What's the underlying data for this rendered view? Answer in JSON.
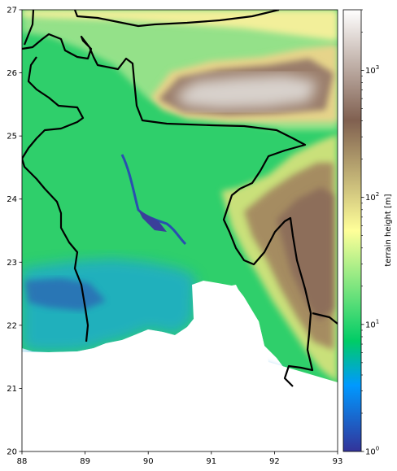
{
  "chart_data": {
    "type": "heatmap",
    "title": "",
    "xlabel": "",
    "ylabel": "",
    "xlim": [
      88,
      93
    ],
    "ylim": [
      20,
      27
    ],
    "x_ticks": [
      "88",
      "89",
      "90",
      "91",
      "92",
      "93"
    ],
    "y_ticks": [
      "20",
      "21",
      "22",
      "23",
      "24",
      "25",
      "26",
      "27"
    ],
    "colorbar": {
      "label": "terrain height [m]",
      "scale": "log",
      "range": [
        1,
        3000
      ],
      "colormap": "terrain",
      "ticks": [
        {
          "value": 1,
          "base": "10",
          "exp": "0"
        },
        {
          "value": 10,
          "base": "10",
          "exp": "1"
        },
        {
          "value": 100,
          "base": "10",
          "exp": "2"
        },
        {
          "value": 1000,
          "base": "10",
          "exp": "3"
        }
      ]
    },
    "features": {
      "plains_typical_m": 15,
      "hills_typical_m": 300,
      "plateau_typical_m": 1500,
      "boundary_color": "#000000",
      "sea_color": "#ffffff"
    }
  }
}
